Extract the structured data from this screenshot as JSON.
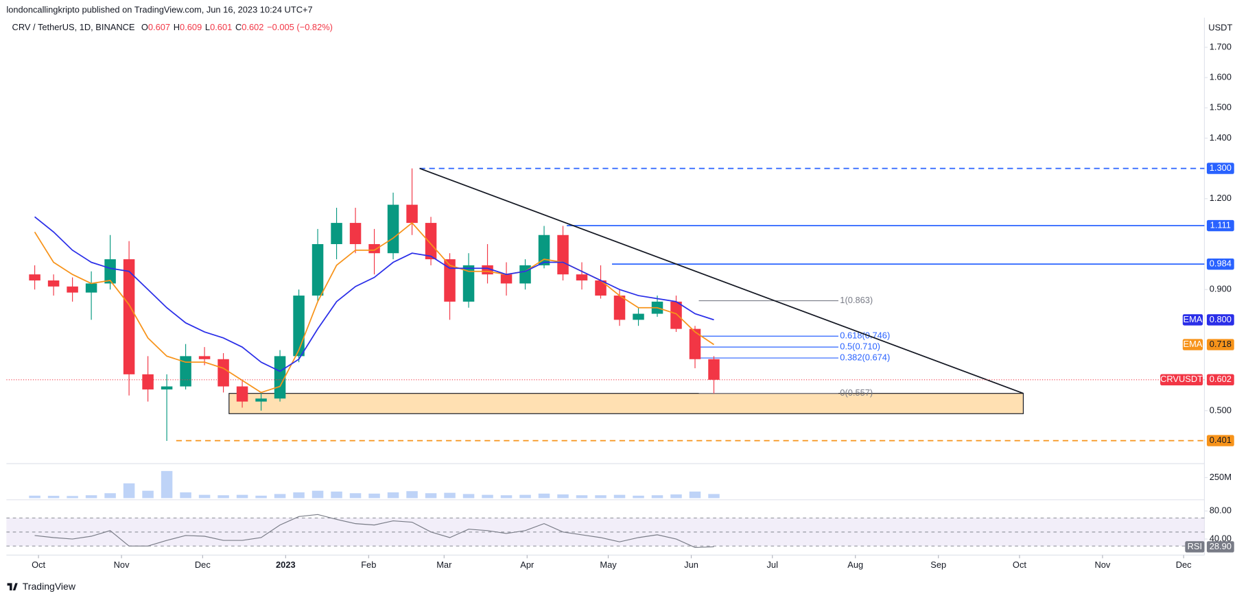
{
  "publisher": "londoncallingkripto published on TradingView.com, Jun 16, 2023 10:24 UTC+7",
  "footer": "TradingView",
  "chart_data": [
    {
      "type": "candlestick",
      "title": "CRV / TetherUS, 1D, BINANCE",
      "unit": "USDT",
      "legend": [
        {
          "key": "O",
          "value": 0.607,
          "label": "0.607"
        },
        {
          "key": "H",
          "value": 0.609,
          "label": "0.609"
        },
        {
          "key": "L",
          "value": 0.601,
          "label": "0.601"
        },
        {
          "key": "C",
          "value": 0.602,
          "label": "0.602"
        }
      ],
      "change": "−0.005 (−0.82%)",
      "x": [
        0,
        1,
        2,
        3,
        4,
        5,
        6,
        7,
        8,
        9,
        10,
        11,
        12,
        13,
        14,
        15,
        16,
        17,
        18,
        19,
        20,
        21,
        22,
        23,
        24,
        25,
        26,
        27,
        28,
        29,
        30,
        31,
        32,
        33,
        34,
        35,
        36
      ],
      "open": [
        0.95,
        0.93,
        0.91,
        0.89,
        0.92,
        1.0,
        0.62,
        0.57,
        0.58,
        0.68,
        0.67,
        0.58,
        0.53,
        0.54,
        0.68,
        0.88,
        1.05,
        1.12,
        1.05,
        1.02,
        1.18,
        1.12,
        1.0,
        0.86,
        0.98,
        0.95,
        0.92,
        0.98,
        1.08,
        0.95,
        0.93,
        0.88,
        0.8,
        0.82,
        0.86,
        0.77,
        0.67
      ],
      "high": [
        0.98,
        0.95,
        0.94,
        0.96,
        1.08,
        1.06,
        0.68,
        0.62,
        0.72,
        0.71,
        0.69,
        0.6,
        0.56,
        0.7,
        0.9,
        1.1,
        1.17,
        1.17,
        1.1,
        1.22,
        1.3,
        1.14,
        1.02,
        1.02,
        1.05,
        0.99,
        1.0,
        1.11,
        1.11,
        0.99,
        0.98,
        0.9,
        0.84,
        0.88,
        0.88,
        0.78,
        0.68
      ],
      "low": [
        0.9,
        0.88,
        0.86,
        0.8,
        0.9,
        0.55,
        0.53,
        0.4,
        0.57,
        0.65,
        0.56,
        0.51,
        0.5,
        0.53,
        0.66,
        0.86,
        1.0,
        1.02,
        0.95,
        1.0,
        1.08,
        0.98,
        0.8,
        0.84,
        0.92,
        0.88,
        0.9,
        0.97,
        0.93,
        0.9,
        0.87,
        0.78,
        0.78,
        0.81,
        0.76,
        0.64,
        0.557
      ],
      "close": [
        0.93,
        0.91,
        0.89,
        0.92,
        1.0,
        0.62,
        0.57,
        0.58,
        0.68,
        0.67,
        0.58,
        0.53,
        0.54,
        0.68,
        0.88,
        1.05,
        1.12,
        1.05,
        1.02,
        1.18,
        1.12,
        1.0,
        0.86,
        0.98,
        0.95,
        0.92,
        0.98,
        1.08,
        0.95,
        0.93,
        0.88,
        0.8,
        0.82,
        0.86,
        0.77,
        0.67,
        0.602
      ],
      "up_color": "#089981",
      "down_color": "#f23645",
      "series": [
        {
          "name": "EMA",
          "color": "#f7931a",
          "values": [
            1.09,
            0.99,
            0.95,
            0.92,
            0.93,
            0.85,
            0.74,
            0.68,
            0.66,
            0.66,
            0.64,
            0.6,
            0.56,
            0.58,
            0.7,
            0.86,
            0.98,
            1.03,
            1.03,
            1.07,
            1.12,
            1.05,
            0.98,
            0.96,
            0.96,
            0.95,
            0.96,
            1.0,
            0.99,
            0.96,
            0.93,
            0.88,
            0.84,
            0.84,
            0.82,
            0.76,
            0.718
          ]
        },
        {
          "name": "EMA",
          "color": "#2a2ee8",
          "values": [
            1.14,
            1.09,
            1.03,
            0.99,
            0.97,
            0.96,
            0.9,
            0.84,
            0.79,
            0.76,
            0.74,
            0.71,
            0.66,
            0.63,
            0.67,
            0.77,
            0.86,
            0.91,
            0.94,
            0.99,
            1.02,
            1.01,
            0.97,
            0.97,
            0.97,
            0.95,
            0.96,
            0.99,
            0.99,
            0.96,
            0.93,
            0.9,
            0.88,
            0.87,
            0.86,
            0.82,
            0.8
          ]
        }
      ],
      "price_labels": [
        {
          "name": "EMA",
          "value": 0.8,
          "label": "0.800",
          "color": "#2a2ee8"
        },
        {
          "name": "EMA",
          "value": 0.718,
          "label": "0.718",
          "color": "#f7931a"
        },
        {
          "name": "CRVUSDT",
          "value": 0.602,
          "label": "0.602",
          "color": "#f23645"
        }
      ],
      "levels": [
        {
          "value": 1.3,
          "label": "1.300",
          "x_start": 20.4,
          "color": "#2962ff",
          "style": "dashed"
        },
        {
          "value": 1.111,
          "label": "1.111",
          "x_start": 28.2,
          "color": "#2962ff",
          "style": "solid"
        },
        {
          "value": 0.984,
          "label": "0.984",
          "x_start": 30.6,
          "color": "#2962ff",
          "style": "solid"
        },
        {
          "value": 0.401,
          "label": "0.401",
          "x_start": 7.5,
          "color": "#f7931a",
          "style": "dashed"
        }
      ],
      "trendline": {
        "x": [
          20.4,
          52.4
        ],
        "values": [
          1.3,
          0.557
        ],
        "color": "#131722"
      },
      "zone": {
        "x": [
          10.3,
          52.4
        ],
        "range": [
          0.49,
          0.557
        ],
        "color": "#ffe0b2"
      },
      "fib": {
        "x": [
          35.2,
          42.6
        ],
        "levels": [
          {
            "value": 0.863,
            "label": "1(0.863)",
            "color": "#787b86"
          },
          {
            "value": 0.746,
            "label": "0.618(0.746)",
            "color": "#2962ff"
          },
          {
            "value": 0.71,
            "label": "0.5(0.710)",
            "color": "#2962ff"
          },
          {
            "value": 0.674,
            "label": "0.382(0.674)",
            "color": "#2962ff"
          },
          {
            "value": 0.557,
            "label": "0(0.557)",
            "color": "#787b86"
          }
        ]
      },
      "xlim": [
        -1.5,
        62
      ],
      "xticks": [
        {
          "value": 0.2,
          "label": "Oct"
        },
        {
          "value": 4.6,
          "label": "Nov"
        },
        {
          "value": 8.9,
          "label": "Dec"
        },
        {
          "value": 13.3,
          "label": "2023"
        },
        {
          "value": 17.7,
          "label": "Feb"
        },
        {
          "value": 21.7,
          "label": "Mar"
        },
        {
          "value": 26.1,
          "label": "Apr"
        },
        {
          "value": 30.4,
          "label": "May"
        },
        {
          "value": 34.8,
          "label": "Jun"
        },
        {
          "value": 39.1,
          "label": "Jul"
        },
        {
          "value": 43.5,
          "label": "Aug"
        },
        {
          "value": 47.9,
          "label": "Sep"
        },
        {
          "value": 52.2,
          "label": "Oct"
        },
        {
          "value": 56.6,
          "label": "Nov"
        },
        {
          "value": 60.9,
          "label": "Dec"
        }
      ],
      "ylim": [
        0.325,
        1.782
      ],
      "yticks": [
        {
          "value": 1.7,
          "label": "1.700"
        },
        {
          "value": 1.6,
          "label": "1.600"
        },
        {
          "value": 1.5,
          "label": "1.500"
        },
        {
          "value": 1.4,
          "label": "1.400"
        },
        {
          "value": 1.2,
          "label": "1.200"
        },
        {
          "value": 0.9,
          "label": "0.900"
        },
        {
          "value": 0.5,
          "label": "0.500"
        }
      ],
      "grid": false
    },
    {
      "type": "bar",
      "name": "Volume",
      "values": [
        30,
        28,
        26,
        35,
        60,
        180,
        90,
        330,
        70,
        40,
        35,
        40,
        30,
        50,
        70,
        90,
        80,
        60,
        55,
        70,
        85,
        60,
        65,
        50,
        40,
        35,
        40,
        55,
        45,
        35,
        35,
        40,
        30,
        35,
        45,
        80,
        50
      ],
      "color": "#7da7f0",
      "ylim": [
        0,
        400
      ],
      "yticks": [
        {
          "value": 250,
          "label": "250M"
        }
      ]
    },
    {
      "type": "line",
      "name": "RSI",
      "color": "#787b86",
      "values": [
        45,
        42,
        40,
        44,
        52,
        30,
        30,
        38,
        45,
        44,
        38,
        38,
        42,
        60,
        72,
        75,
        68,
        62,
        60,
        66,
        64,
        50,
        42,
        54,
        52,
        48,
        52,
        62,
        50,
        46,
        42,
        36,
        42,
        46,
        40,
        28,
        28.9
      ],
      "last_label": "28.90",
      "band": [
        30,
        70
      ],
      "middle": 50,
      "band_color": "#ede7f6",
      "ylim": [
        19.4,
        92.6
      ],
      "yticks": [
        {
          "value": 80,
          "label": "80.00"
        },
        {
          "value": 40,
          "label": "40.00"
        }
      ]
    }
  ]
}
